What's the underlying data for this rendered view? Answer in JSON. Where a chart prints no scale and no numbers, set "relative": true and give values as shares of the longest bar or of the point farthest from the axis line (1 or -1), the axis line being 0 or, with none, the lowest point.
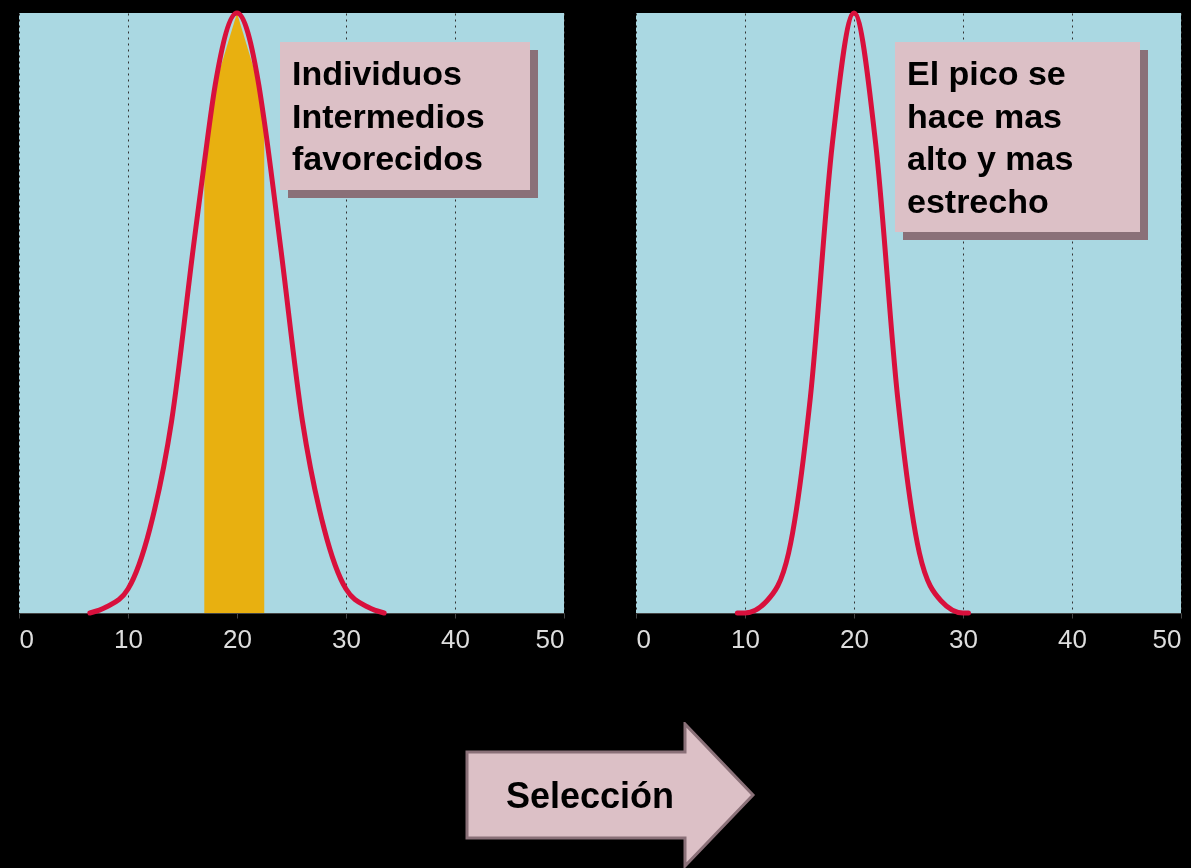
{
  "chart_data": [
    {
      "type": "line",
      "relative": true,
      "xlim": [
        0,
        50
      ],
      "xticks": [
        0,
        10,
        20,
        30,
        40,
        50
      ],
      "grid": "x",
      "x": [
        6.5,
        8,
        10,
        12,
        14,
        16,
        17,
        18,
        20,
        22,
        22.5,
        24,
        26,
        28,
        30,
        32,
        33.5
      ],
      "series": [
        {
          "color": "#d8103c",
          "values": [
            0,
            0.01,
            0.04,
            0.14,
            0.32,
            0.61,
            0.75,
            0.88,
            1,
            0.88,
            0.82,
            0.61,
            0.32,
            0.14,
            0.04,
            0.01,
            0
          ]
        }
      ],
      "bands": [
        {
          "axis": "x",
          "from": 17,
          "to": 22.5,
          "color": "#e8b010"
        }
      ],
      "annotations": [
        "Individuos Intermedios favorecidos",
        "Selección"
      ]
    },
    {
      "type": "line",
      "relative": true,
      "xlim": [
        0,
        50
      ],
      "xticks": [
        0,
        10,
        20,
        30,
        40,
        50
      ],
      "grid": "x",
      "x": [
        9.3,
        10,
        12,
        14,
        16,
        18,
        20,
        22,
        24,
        26,
        28,
        30,
        30.5
      ],
      "series": [
        {
          "color": "#d8103c",
          "values": [
            0,
            0,
            0.02,
            0.1,
            0.36,
            0.78,
            1,
            0.78,
            0.36,
            0.1,
            0.02,
            0,
            0
          ]
        }
      ],
      "annotations": [
        "El pico se hace mas alto y mas estrecho"
      ]
    }
  ]
}
